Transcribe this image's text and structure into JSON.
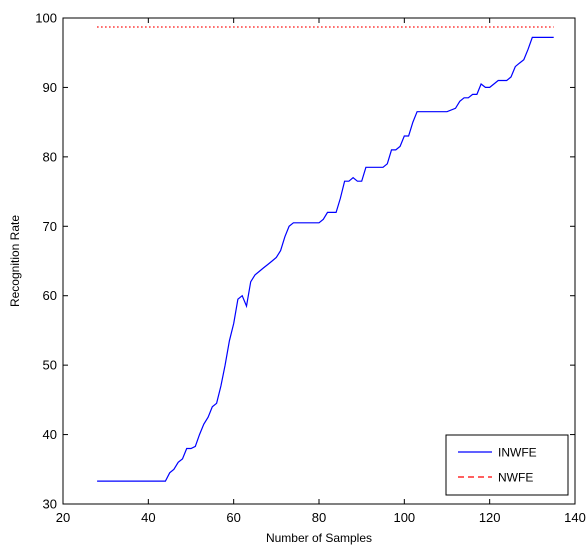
{
  "chart_data": {
    "type": "line",
    "title": "",
    "xlabel": "Number of Samples",
    "ylabel": "Recognition Rate",
    "xlim": [
      20,
      140
    ],
    "ylim": [
      30,
      100
    ],
    "xticks": [
      20,
      40,
      60,
      80,
      100,
      120,
      140
    ],
    "yticks": [
      30,
      40,
      50,
      60,
      70,
      80,
      90,
      100
    ],
    "grid": false,
    "legend_position": "bottom-right",
    "series": [
      {
        "name": "INWFE",
        "color": "#0000ff",
        "line_style": "solid",
        "x": [
          28,
          40,
          44,
          45,
          46,
          47,
          48,
          49,
          50,
          51,
          52,
          53,
          54,
          55,
          56,
          57,
          58,
          59,
          60,
          61,
          62,
          63,
          64,
          65,
          66,
          67,
          68,
          69,
          70,
          71,
          72,
          73,
          74,
          75,
          76,
          78,
          80,
          81,
          82,
          83,
          84,
          85,
          86,
          87,
          88,
          89,
          90,
          91,
          92,
          93,
          94,
          95,
          96,
          97,
          98,
          99,
          100,
          101,
          102,
          103,
          104,
          105,
          106,
          108,
          110,
          112,
          113,
          114,
          115,
          116,
          117,
          118,
          119,
          120,
          121,
          122,
          123,
          124,
          125,
          126,
          127,
          128,
          129,
          130,
          131,
          132,
          133,
          134,
          135
        ],
        "values": [
          33.3,
          33.3,
          33.3,
          34.5,
          35,
          36,
          36.5,
          38,
          38,
          38.3,
          40,
          41.5,
          42.5,
          44,
          44.5,
          47,
          50,
          53.5,
          56,
          59.5,
          60,
          58.5,
          62,
          63,
          63.5,
          64,
          64.5,
          65,
          65.5,
          66.5,
          68.5,
          70,
          70.5,
          70.5,
          70.5,
          70.5,
          70.5,
          71,
          72,
          72,
          72,
          74,
          76.5,
          76.5,
          77,
          76.5,
          76.5,
          78.5,
          78.5,
          78.5,
          78.5,
          78.5,
          79,
          81,
          81,
          81.5,
          83,
          83,
          85,
          86.5,
          86.5,
          86.5,
          86.5,
          86.5,
          86.5,
          87,
          88,
          88.5,
          88.5,
          89,
          89,
          90.5,
          90,
          90,
          90.5,
          91,
          91,
          91,
          91.5,
          93,
          93.5,
          94,
          95.5,
          97.2,
          97.2,
          97.2,
          97.2,
          97.2,
          97.2
        ]
      },
      {
        "name": "NWFE",
        "color": "#ff0000",
        "line_style": "dotted",
        "legend_line_style": "dashed",
        "x": [
          28,
          135
        ],
        "values": [
          98.7,
          98.7
        ]
      }
    ]
  }
}
